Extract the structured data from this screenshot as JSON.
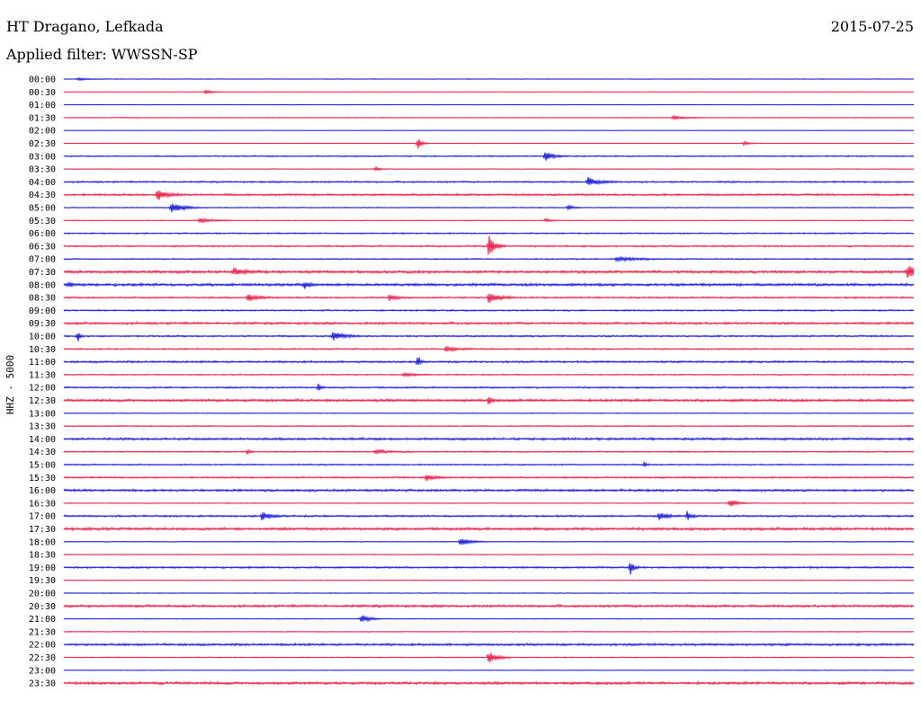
{
  "header": {
    "station": "HT Dragano, Lefkada",
    "date": "2015-07-25",
    "filter": "Applied filter: WWSSN-SP"
  },
  "chart_data": {
    "type": "line",
    "subtype": "helicorder",
    "ylabel": "HHZ - 5000",
    "colors": {
      "a": "#1a1ad9",
      "b": "#e8204a"
    },
    "row_labels": [
      "00:00",
      "00:30",
      "01:00",
      "01:30",
      "02:00",
      "02:30",
      "03:00",
      "03:30",
      "04:00",
      "04:30",
      "05:00",
      "05:30",
      "06:00",
      "06:30",
      "07:00",
      "07:30",
      "08:00",
      "08:30",
      "09:00",
      "09:30",
      "10:00",
      "10:30",
      "11:00",
      "11:30",
      "12:00",
      "12:30",
      "13:00",
      "13:30",
      "14:00",
      "14:30",
      "15:00",
      "15:30",
      "16:00",
      "16:30",
      "17:00",
      "17:30",
      "18:00",
      "18:30",
      "19:00",
      "19:30",
      "20:00",
      "20:30",
      "21:00",
      "21:30",
      "22:00",
      "22:30",
      "23:00",
      "23:30"
    ],
    "noise": [
      0.4,
      0.3,
      0.2,
      0.5,
      0.2,
      0.4,
      0.8,
      0.4,
      1.0,
      1.2,
      0.6,
      0.5,
      0.8,
      1.0,
      0.8,
      1.6,
      1.6,
      1.0,
      0.9,
      1.4,
      1.0,
      0.9,
      1.2,
      0.7,
      1.0,
      1.6,
      0.5,
      0.7,
      1.4,
      0.8,
      0.8,
      1.0,
      1.4,
      0.5,
      1.1,
      1.6,
      0.5,
      0.5,
      1.1,
      0.5,
      0.5,
      1.5,
      0.5,
      0.5,
      1.4,
      0.6,
      0.4,
      1.6
    ],
    "events": [
      {
        "row": 0,
        "minute": 0.5,
        "amp": 1.5,
        "dur": 1.0
      },
      {
        "row": 1,
        "minute": 5.0,
        "amp": 2.0,
        "dur": 0.8
      },
      {
        "row": 3,
        "minute": 21.5,
        "amp": 2.0,
        "dur": 1.2
      },
      {
        "row": 5,
        "minute": 12.5,
        "amp": 6.0,
        "dur": 0.4
      },
      {
        "row": 5,
        "minute": 24.0,
        "amp": 2.0,
        "dur": 0.6
      },
      {
        "row": 6,
        "minute": 17.0,
        "amp": 5.0,
        "dur": 0.8
      },
      {
        "row": 7,
        "minute": 11.0,
        "amp": 2.0,
        "dur": 0.4
      },
      {
        "row": 8,
        "minute": 18.5,
        "amp": 5.0,
        "dur": 1.0
      },
      {
        "row": 9,
        "minute": 3.3,
        "amp": 6.0,
        "dur": 1.0
      },
      {
        "row": 10,
        "minute": 3.8,
        "amp": 7.0,
        "dur": 1.0
      },
      {
        "row": 10,
        "minute": 17.8,
        "amp": 3.0,
        "dur": 0.5
      },
      {
        "row": 11,
        "minute": 4.8,
        "amp": 3.0,
        "dur": 1.2
      },
      {
        "row": 11,
        "minute": 17.0,
        "amp": 2.0,
        "dur": 0.5
      },
      {
        "row": 13,
        "minute": 15.0,
        "amp": 12.0,
        "dur": 0.6
      },
      {
        "row": 14,
        "minute": 19.5,
        "amp": 2.5,
        "dur": 2.0
      },
      {
        "row": 15,
        "minute": 6.0,
        "amp": 4.0,
        "dur": 1.0
      },
      {
        "row": 15,
        "minute": 29.8,
        "amp": 9.0,
        "dur": 0.6
      },
      {
        "row": 16,
        "minute": 8.5,
        "amp": 4.0,
        "dur": 0.5
      },
      {
        "row": 16,
        "minute": 0.2,
        "amp": 3.0,
        "dur": 0.3
      },
      {
        "row": 17,
        "minute": 6.5,
        "amp": 4.0,
        "dur": 1.0
      },
      {
        "row": 17,
        "minute": 11.5,
        "amp": 4.0,
        "dur": 0.6
      },
      {
        "row": 17,
        "minute": 15.0,
        "amp": 6.0,
        "dur": 0.9
      },
      {
        "row": 20,
        "minute": 0.5,
        "amp": 6.0,
        "dur": 0.2
      },
      {
        "row": 20,
        "minute": 9.5,
        "amp": 5.0,
        "dur": 1.0
      },
      {
        "row": 21,
        "minute": 13.5,
        "amp": 3.0,
        "dur": 1.0
      },
      {
        "row": 22,
        "minute": 12.5,
        "amp": 7.0,
        "dur": 0.2
      },
      {
        "row": 23,
        "minute": 12.0,
        "amp": 2.0,
        "dur": 1.0
      },
      {
        "row": 24,
        "minute": 9.0,
        "amp": 5.0,
        "dur": 0.2
      },
      {
        "row": 25,
        "minute": 15.0,
        "amp": 4.0,
        "dur": 0.3
      },
      {
        "row": 29,
        "minute": 6.5,
        "amp": 3.0,
        "dur": 0.2
      },
      {
        "row": 29,
        "minute": 11.0,
        "amp": 2.0,
        "dur": 1.5
      },
      {
        "row": 30,
        "minute": 20.5,
        "amp": 3.0,
        "dur": 0.2
      },
      {
        "row": 31,
        "minute": 12.8,
        "amp": 4.0,
        "dur": 0.8
      },
      {
        "row": 33,
        "minute": 23.5,
        "amp": 4.0,
        "dur": 0.8
      },
      {
        "row": 34,
        "minute": 7.0,
        "amp": 5.0,
        "dur": 0.8
      },
      {
        "row": 34,
        "minute": 21.0,
        "amp": 4.0,
        "dur": 0.8
      },
      {
        "row": 34,
        "minute": 22.0,
        "amp": 5.0,
        "dur": 0.4
      },
      {
        "row": 36,
        "minute": 14.0,
        "amp": 4.0,
        "dur": 1.0
      },
      {
        "row": 38,
        "minute": 20.0,
        "amp": 7.0,
        "dur": 0.3
      },
      {
        "row": 42,
        "minute": 10.5,
        "amp": 5.0,
        "dur": 0.8
      },
      {
        "row": 45,
        "minute": 15.0,
        "amp": 7.0,
        "dur": 0.8
      }
    ]
  }
}
